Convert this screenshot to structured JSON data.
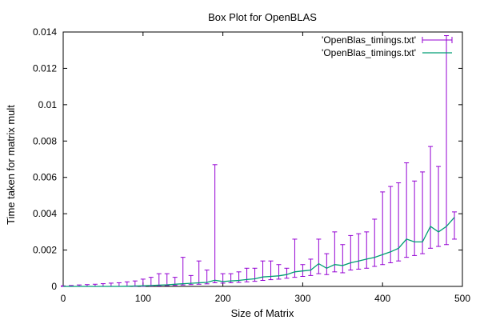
{
  "chart_data": {
    "type": "line",
    "title": "Box Plot for OpenBLAS",
    "xlabel": "Size of Matrix",
    "ylabel": "Time taken for matrix mult",
    "xlim": [
      0,
      500
    ],
    "ylim": [
      0,
      0.014
    ],
    "x_ticks": [
      0,
      100,
      200,
      300,
      400,
      500
    ],
    "y_ticks": [
      0,
      0.002,
      0.004,
      0.006,
      0.008,
      0.01,
      0.012,
      0.014
    ],
    "x_tick_labels": [
      "0",
      "100",
      "200",
      "300",
      "400",
      "500"
    ],
    "y_tick_labels": [
      "0",
      "0.002",
      "0.004",
      "0.006",
      "0.008",
      "0.01",
      "0.012",
      "0.014"
    ],
    "grid": false,
    "legend_position": "top-right",
    "colors": {
      "errorbars": "#9400d3",
      "line": "#009e73"
    },
    "series": [
      {
        "name": "'OpenBlas_timings.txt'",
        "style": "errorbars",
        "x": [
          0,
          10,
          20,
          30,
          40,
          50,
          60,
          70,
          80,
          90,
          100,
          110,
          120,
          130,
          140,
          150,
          160,
          170,
          180,
          190,
          200,
          210,
          220,
          230,
          240,
          250,
          260,
          270,
          280,
          290,
          300,
          310,
          320,
          330,
          340,
          350,
          360,
          370,
          380,
          390,
          400,
          410,
          420,
          430,
          440,
          450,
          460,
          470,
          480,
          490
        ],
        "y": [
          0,
          0,
          0,
          0,
          0,
          0,
          0,
          0,
          1e-05,
          2e-05,
          3e-05,
          5e-05,
          7e-05,
          9e-05,
          0.00012,
          0.00015,
          0.00017,
          0.0002,
          0.00022,
          0.00034,
          0.00027,
          0.0003,
          0.00033,
          0.00038,
          0.00042,
          0.00052,
          0.00055,
          0.00058,
          0.00065,
          0.0008,
          0.00085,
          0.0009,
          0.00125,
          0.001,
          0.0012,
          0.00115,
          0.0013,
          0.0014,
          0.0015,
          0.0016,
          0.00175,
          0.0019,
          0.0021,
          0.0026,
          0.00245,
          0.00245,
          0.0033,
          0.003,
          0.0033,
          0.0038
        ],
        "low": [
          0,
          0,
          0,
          0,
          0,
          0,
          0,
          0,
          0,
          0,
          0,
          2e-05,
          3e-05,
          5e-05,
          6e-05,
          8e-05,
          0.0001,
          0.00012,
          0.00014,
          0.0002,
          0.00018,
          0.0002,
          0.00022,
          0.00025,
          0.00028,
          0.00033,
          0.00037,
          0.0004,
          0.00045,
          0.0005,
          0.00055,
          0.0006,
          0.0007,
          0.00065,
          0.0008,
          0.00075,
          0.0009,
          0.00095,
          0.001,
          0.0011,
          0.0012,
          0.0013,
          0.0014,
          0.0016,
          0.0017,
          0.0018,
          0.0021,
          0.0022,
          0.0023,
          0.0026
        ],
        "high": [
          3e-05,
          5e-05,
          8e-05,
          0.0001,
          0.00012,
          0.00015,
          0.00018,
          0.0002,
          0.00025,
          0.0003,
          0.0004,
          0.0005,
          0.0007,
          0.0007,
          0.0005,
          0.0016,
          0.0006,
          0.0014,
          0.0009,
          0.0067,
          0.0007,
          0.0007,
          0.0008,
          0.001,
          0.001,
          0.0014,
          0.0014,
          0.0012,
          0.001,
          0.0026,
          0.0012,
          0.0015,
          0.0026,
          0.0018,
          0.003,
          0.0023,
          0.0028,
          0.0029,
          0.003,
          0.0037,
          0.0052,
          0.0055,
          0.0057,
          0.0068,
          0.0058,
          0.0063,
          0.0077,
          0.0066,
          0.0138,
          0.0041
        ]
      },
      {
        "name": "'OpenBlas_timings.txt'",
        "style": "lines",
        "x": [
          0,
          10,
          20,
          30,
          40,
          50,
          60,
          70,
          80,
          90,
          100,
          110,
          120,
          130,
          140,
          150,
          160,
          170,
          180,
          190,
          200,
          210,
          220,
          230,
          240,
          250,
          260,
          270,
          280,
          290,
          300,
          310,
          320,
          330,
          340,
          350,
          360,
          370,
          380,
          390,
          400,
          410,
          420,
          430,
          440,
          450,
          460,
          470,
          480,
          490
        ],
        "y": [
          0,
          0,
          0,
          0,
          0,
          0,
          0,
          0,
          1e-05,
          2e-05,
          3e-05,
          5e-05,
          7e-05,
          9e-05,
          0.00012,
          0.00015,
          0.00017,
          0.0002,
          0.00022,
          0.00034,
          0.00027,
          0.0003,
          0.00033,
          0.00038,
          0.00042,
          0.00052,
          0.00055,
          0.00058,
          0.00065,
          0.0008,
          0.00085,
          0.0009,
          0.00125,
          0.001,
          0.0012,
          0.00115,
          0.0013,
          0.0014,
          0.0015,
          0.0016,
          0.00175,
          0.0019,
          0.0021,
          0.0026,
          0.00245,
          0.00245,
          0.0033,
          0.003,
          0.0033,
          0.0038
        ]
      }
    ]
  }
}
